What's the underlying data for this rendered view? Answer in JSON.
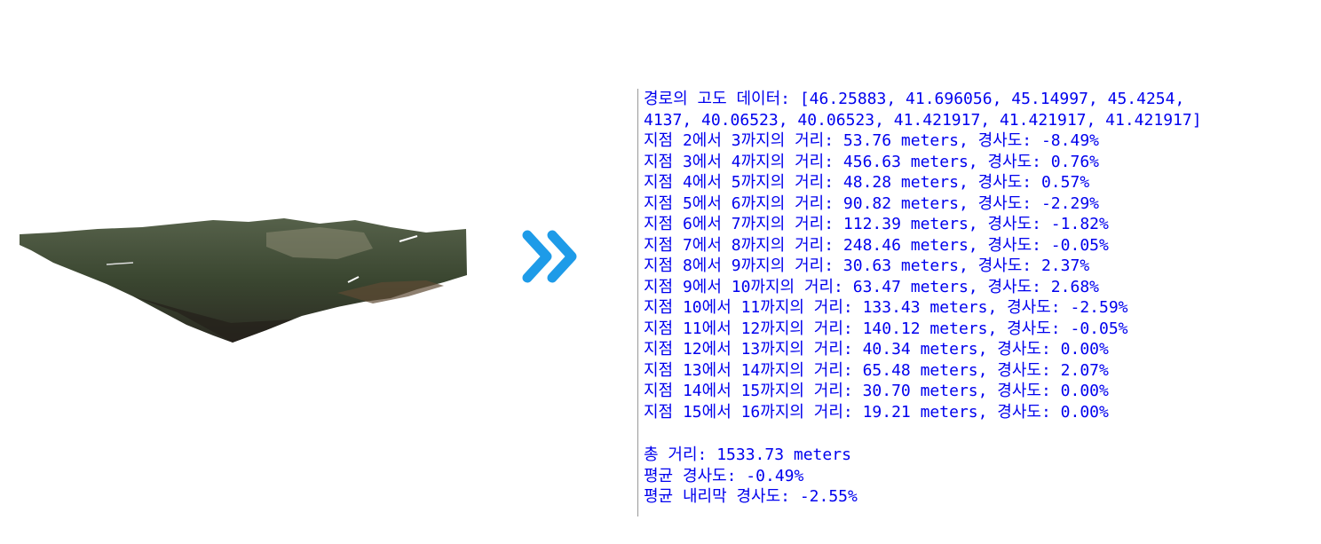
{
  "console": {
    "lines": [
      "경로의 고도 데이터: [46.25883, 41.696056, 45.14997, 45.4254,",
      "4137, 40.06523, 40.06523, 41.421917, 41.421917, 41.421917]",
      "지점 2에서 3까지의 거리: 53.76 meters, 경사도: -8.49%",
      "지점 3에서 4까지의 거리: 456.63 meters, 경사도: 0.76%",
      "지점 4에서 5까지의 거리: 48.28 meters, 경사도: 0.57%",
      "지점 5에서 6까지의 거리: 90.82 meters, 경사도: -2.29%",
      "지점 6에서 7까지의 거리: 112.39 meters, 경사도: -1.82%",
      "지점 7에서 8까지의 거리: 248.46 meters, 경사도: -0.05%",
      "지점 8에서 9까지의 거리: 30.63 meters, 경사도: 2.37%",
      "지점 9에서 10까지의 거리: 63.47 meters, 경사도: 2.68%",
      "지점 10에서 11까지의 거리: 133.43 meters, 경사도: -2.59%",
      "지점 11에서 12까지의 거리: 140.12 meters, 경사도: -0.05%",
      "지점 12에서 13까지의 거리: 40.34 meters, 경사도: 0.00%",
      "지점 13에서 14까지의 거리: 65.48 meters, 경사도: 2.07%",
      "지점 14에서 15까지의 거리: 30.70 meters, 경사도: 0.00%",
      "지점 15에서 16까지의 거리: 19.21 meters, 경사도: 0.00%"
    ],
    "summary": [
      "총 거리: 1533.73 meters",
      "평균 경사도: -0.49%",
      "평균 내리막 경사도: -2.55%"
    ]
  }
}
